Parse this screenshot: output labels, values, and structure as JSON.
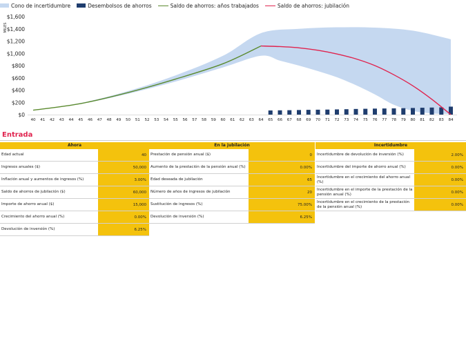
{
  "legend": [
    {
      "label": "Cono de incertidumbre",
      "kind": "box",
      "color": "#c5d8f0"
    },
    {
      "label": "Desembolsos de ahorros",
      "kind": "box",
      "color": "#1f3d6e"
    },
    {
      "label": "Saldo de ahorros: años trabajados",
      "kind": "line",
      "color": "#5b8a2e"
    },
    {
      "label": "Saldo de ahorros: jubilación",
      "kind": "line",
      "color": "#e0234e"
    }
  ],
  "chart_data": {
    "type": "line",
    "ylabel": "MILES",
    "yticks": [
      "$0",
      "$200",
      "$400",
      "$600",
      "$800",
      "$1,000",
      "$1,200",
      "$1,400",
      "$1,600"
    ],
    "ylim": [
      0,
      1600
    ],
    "x": [
      40,
      41,
      42,
      43,
      44,
      45,
      46,
      47,
      48,
      49,
      50,
      51,
      52,
      53,
      54,
      55,
      56,
      57,
      58,
      59,
      60,
      61,
      62,
      63,
      64,
      65,
      66,
      67,
      68,
      69,
      70,
      71,
      72,
      73,
      74,
      75,
      76,
      77,
      78,
      79,
      80,
      81,
      82,
      83,
      84
    ],
    "working_balance": [
      [
        40,
        72
      ],
      [
        45,
        180
      ],
      [
        50,
        360
      ],
      [
        55,
        580
      ],
      [
        60,
        830
      ],
      [
        64,
        1120
      ]
    ],
    "retirement_balance": [
      [
        64,
        1120
      ],
      [
        66,
        1110
      ],
      [
        68,
        1090
      ],
      [
        70,
        1050
      ],
      [
        72,
        990
      ],
      [
        74,
        910
      ],
      [
        76,
        800
      ],
      [
        78,
        650
      ],
      [
        80,
        470
      ],
      [
        82,
        250
      ],
      [
        84,
        0
      ]
    ],
    "cone_upper": [
      [
        40,
        72
      ],
      [
        45,
        190
      ],
      [
        50,
        385
      ],
      [
        55,
        640
      ],
      [
        60,
        960
      ],
      [
        64,
        1330
      ],
      [
        68,
        1400
      ],
      [
        72,
        1425
      ],
      [
        76,
        1420
      ],
      [
        80,
        1370
      ],
      [
        84,
        1230
      ]
    ],
    "cone_lower": [
      [
        40,
        72
      ],
      [
        45,
        175
      ],
      [
        50,
        340
      ],
      [
        55,
        540
      ],
      [
        60,
        770
      ],
      [
        64,
        960
      ],
      [
        66,
        880
      ],
      [
        68,
        800
      ],
      [
        70,
        710
      ],
      [
        72,
        610
      ],
      [
        74,
        480
      ],
      [
        76,
        330
      ],
      [
        78,
        160
      ],
      [
        80,
        60
      ],
      [
        82,
        20
      ],
      [
        84,
        10
      ]
    ],
    "withdrawals": [
      [
        65,
        68
      ],
      [
        66,
        70
      ],
      [
        67,
        72
      ],
      [
        68,
        75
      ],
      [
        69,
        78
      ],
      [
        70,
        80
      ],
      [
        71,
        82
      ],
      [
        72,
        85
      ],
      [
        73,
        88
      ],
      [
        74,
        92
      ],
      [
        75,
        95
      ],
      [
        76,
        98
      ],
      [
        77,
        100
      ],
      [
        78,
        102
      ],
      [
        79,
        105
      ],
      [
        80,
        108
      ],
      [
        81,
        112
      ],
      [
        82,
        115
      ],
      [
        83,
        118
      ],
      [
        84,
        130
      ]
    ]
  },
  "section_title": "Entrada",
  "col_now": {
    "header": "Ahora",
    "rows": [
      {
        "label": "Edad actual",
        "value": "40"
      },
      {
        "label": "Ingresos anuales ($)",
        "value": "50,000"
      },
      {
        "label": "Inflación anual y aumentos de ingresos (%)",
        "value": "3.00%"
      },
      {
        "label": "Saldo de ahorros de jubilación ($)",
        "value": "60,000"
      },
      {
        "label": "Importe de ahorro anual ($)",
        "value": "15,000"
      },
      {
        "label": "Crecimiento del ahorro anual (%)",
        "value": "0.00%"
      },
      {
        "label": "Devolución de inversión (%)",
        "value": "6.25%"
      }
    ]
  },
  "col_retire": {
    "header": "En la jubilación",
    "rows": [
      {
        "label": "Prestación de pensión anual ($)",
        "value": "0"
      },
      {
        "label": "Aumento de la prestación de la pensión anual (%)",
        "value": "0.00%"
      },
      {
        "label": "Edad deseada de jubilación",
        "value": "65"
      },
      {
        "label": "Número de años de ingresos de jubilación",
        "value": "20"
      },
      {
        "label": "Sustitución de ingresos (%)",
        "value": "75.00%"
      },
      {
        "label": "Devolución de inversión (%)",
        "value": "6.25%"
      }
    ]
  },
  "col_uncert": {
    "header": "Incertidumbre",
    "rows": [
      {
        "label": "Incertidumbre de devolución de inversión (%)",
        "value": "2.00%"
      },
      {
        "label": "Incertidumbre del importe de ahorro anual (%)",
        "value": "0.00%"
      },
      {
        "label": "Incertidumbre en el crecimiento del ahorro anual (%)",
        "value": "0.00%"
      },
      {
        "label": "Incertidumbre en el importe de la prestación de la pensión anual (%)",
        "value": "0.00%"
      },
      {
        "label": "Incertidumbre en el crecimiento de la prestación de la pensión anual (%)",
        "value": "0.00%"
      }
    ]
  }
}
